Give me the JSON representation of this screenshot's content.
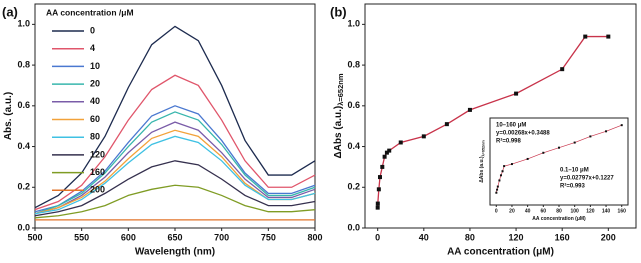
{
  "chart_data": [
    {
      "type": "line",
      "panel_label": "(a)",
      "x_label": "Wavelength (nm)",
      "y_label": "Abs. (a.u.)",
      "legend_title": "AA concentration /μM",
      "xlim": [
        500,
        800
      ],
      "xticks": [
        500,
        550,
        600,
        650,
        700,
        750,
        800
      ],
      "ylim": [
        0,
        1.1
      ],
      "yticks": [
        {
          "value": 0,
          "label": "0.0"
        },
        0.2,
        0.4,
        0.6,
        0.8,
        {
          "value": 1,
          "label": "1.0"
        }
      ],
      "x": [
        500,
        525,
        550,
        575,
        600,
        625,
        650,
        675,
        700,
        725,
        750,
        775,
        800
      ],
      "series": [
        {
          "name": "0",
          "color": "#1d2b4f",
          "values": [
            0.1,
            0.16,
            0.27,
            0.45,
            0.69,
            0.9,
            0.99,
            0.92,
            0.7,
            0.43,
            0.26,
            0.26,
            0.33
          ]
        },
        {
          "name": "4",
          "color": "#e0566b",
          "values": [
            0.09,
            0.13,
            0.21,
            0.35,
            0.53,
            0.68,
            0.75,
            0.7,
            0.53,
            0.33,
            0.2,
            0.2,
            0.26
          ]
        },
        {
          "name": "10",
          "color": "#4a78d0",
          "values": [
            0.08,
            0.11,
            0.18,
            0.28,
            0.42,
            0.55,
            0.6,
            0.56,
            0.43,
            0.27,
            0.17,
            0.17,
            0.21
          ]
        },
        {
          "name": "20",
          "color": "#38b6ad",
          "values": [
            0.07,
            0.11,
            0.17,
            0.27,
            0.4,
            0.52,
            0.57,
            0.53,
            0.41,
            0.26,
            0.16,
            0.16,
            0.2
          ]
        },
        {
          "name": "40",
          "color": "#7a5ca8",
          "values": [
            0.07,
            0.1,
            0.16,
            0.25,
            0.37,
            0.47,
            0.52,
            0.48,
            0.37,
            0.24,
            0.15,
            0.15,
            0.19
          ]
        },
        {
          "name": "60",
          "color": "#f2a23a",
          "values": [
            0.07,
            0.1,
            0.15,
            0.23,
            0.34,
            0.44,
            0.48,
            0.45,
            0.35,
            0.22,
            0.14,
            0.14,
            0.17
          ]
        },
        {
          "name": "80",
          "color": "#3fc1e3",
          "values": [
            0.07,
            0.09,
            0.14,
            0.22,
            0.32,
            0.41,
            0.45,
            0.42,
            0.33,
            0.21,
            0.14,
            0.14,
            0.17
          ]
        },
        {
          "name": "120",
          "color": "#35304e",
          "values": [
            0.06,
            0.08,
            0.11,
            0.17,
            0.24,
            0.3,
            0.33,
            0.31,
            0.24,
            0.16,
            0.11,
            0.11,
            0.13
          ]
        },
        {
          "name": "160",
          "color": "#7f9c24",
          "values": [
            0.05,
            0.06,
            0.08,
            0.11,
            0.16,
            0.19,
            0.21,
            0.2,
            0.16,
            0.11,
            0.08,
            0.08,
            0.09
          ]
        },
        {
          "name": "200",
          "color": "#e27328",
          "values": [
            0.04,
            0.04,
            0.04,
            0.04,
            0.04,
            0.04,
            0.04,
            0.04,
            0.04,
            0.04,
            0.04,
            0.04,
            0.04
          ]
        }
      ]
    },
    {
      "type": "line",
      "panel_label": "(b)",
      "x_label": "AA concentration (μM)",
      "y_label": "ΔAbs (a.u.)",
      "y_label_subscript": "λ=652nm",
      "xlim": [
        -11,
        224
      ],
      "xticks": [
        0,
        40,
        80,
        120,
        160,
        200
      ],
      "ylim": [
        0,
        1.1
      ],
      "yticks": [
        {
          "value": 0,
          "label": "0.0"
        },
        0.2,
        0.4,
        0.6,
        0.8,
        {
          "value": 1,
          "label": "1.0"
        }
      ],
      "line_color": "#c8334a",
      "marker_color": "#111111",
      "x": [
        0,
        0.1,
        1,
        2,
        4,
        6,
        8,
        10,
        20,
        40,
        60,
        80,
        120,
        160,
        180,
        200
      ],
      "values": [
        0.1,
        0.12,
        0.19,
        0.25,
        0.3,
        0.35,
        0.37,
        0.38,
        0.42,
        0.45,
        0.51,
        0.58,
        0.66,
        0.78,
        0.94,
        0.94
      ]
    },
    {
      "type": "line",
      "x_label": "AA concentration (μM)",
      "y_label": "ΔAbs (a.u.)",
      "y_label_subscript": "λ=652nm",
      "annotations": [
        "10–160 μM",
        "y=0.00268x+0.3488",
        "R²=0.998",
        "0.1–10 μM",
        "y=0.02797x+0.1227",
        "R²=0.993"
      ],
      "xlim": [
        -8,
        168
      ],
      "xticks": [
        0,
        20,
        40,
        60,
        80,
        100,
        120,
        140,
        160
      ],
      "ylim": [
        0,
        0.85
      ],
      "line_color": "#c8334a",
      "marker_color": "#111111",
      "x": [
        0.1,
        1,
        2,
        4,
        6,
        8,
        10,
        20,
        40,
        60,
        80,
        100,
        120,
        140,
        160
      ],
      "values": [
        0.12,
        0.15,
        0.18,
        0.24,
        0.29,
        0.33,
        0.38,
        0.4,
        0.45,
        0.51,
        0.56,
        0.61,
        0.67,
        0.72,
        0.78
      ]
    }
  ]
}
